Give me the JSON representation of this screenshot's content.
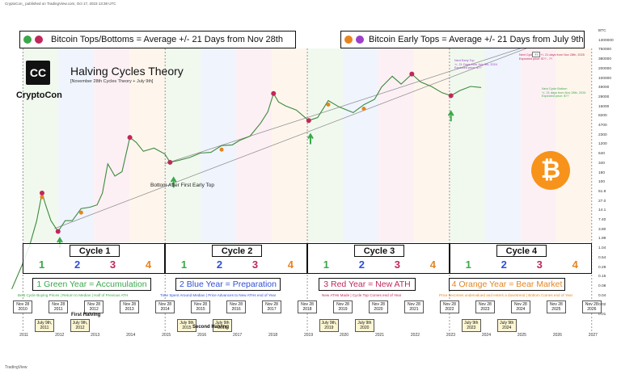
{
  "header": {
    "text": "CryptoCon_ published on TradingView.com, Oct 17, 2023 13:38 UTC"
  },
  "banners": {
    "left_text": "Bitcoin Tops/Bottoms = Average +/- 21 Days from Nov 28th",
    "right_text": "Bitcoin  Early Tops = Average +/- 21 Days from July 9th"
  },
  "brand": {
    "logo": "CC",
    "name": "CryptoCon"
  },
  "title": {
    "main": "Halving Cycles Theory",
    "sub": "[November 28th Cycles Theory + July 9th]"
  },
  "cycles": [
    {
      "label": "Cycle 1",
      "years": [
        "1",
        "2",
        "3",
        "4"
      ]
    },
    {
      "label": "Cycle 2",
      "years": [
        "1",
        "2",
        "3",
        "4"
      ]
    },
    {
      "label": "Cycle 3",
      "years": [
        "1",
        "2",
        "3",
        "4"
      ]
    },
    {
      "label": "Cycle 4",
      "years": [
        "1",
        "2",
        "3",
        "4"
      ]
    }
  ],
  "year_legend": [
    {
      "text": "1 Green Year = Accumulation",
      "note": "Best Cycle Buying Prices | Return to Median | Half of Previous ATH",
      "color": "#3aa84a"
    },
    {
      "text": "2 Blue Year = Preparation",
      "note": "Time Spent Around Median | Price Advances to New ATHs end of Year",
      "color": "#2f4fd8"
    },
    {
      "text": "3 Red Year = New ATH",
      "note": "New ATHs Made | Cycle Top Comes end of Year",
      "color": "#c0285a"
    },
    {
      "text": "4 Orange Year = Bear Market",
      "note": "Price becomes undervalued and enters a downtrend | Bottom Comes end of Year",
      "color": "#e6841f"
    }
  ],
  "nov_dates": [
    "Nov 28\n2010",
    "Nov 28\n2011",
    "Nov 28\n2012",
    "Nov 28\n2013",
    "Nov 28\n2014",
    "Nov 28\n2015",
    "Nov 28\n2016",
    "Nov 28\n2017",
    "Nov 28\n2018",
    "Nov 28\n2019",
    "Nov 28\n2020",
    "Nov 28\n2021",
    "Nov 28\n2022",
    "Nov 28\n2023",
    "Nov 28\n2024",
    "Nov 28\n2025",
    "Nov 28\n2026"
  ],
  "july_dates": [
    "July 9th,\n2011",
    "July 9th,\n2012",
    "July 9th\n2015",
    "July 9th\n2016",
    "July 9th,\n2019",
    "July 9th\n2020",
    "July 9th\n2023",
    "July 9th\n2024"
  ],
  "halvings": [
    "First Halving",
    "Second Halving"
  ],
  "annotations": {
    "bottom_after_first": "Bottom After First Early Top",
    "next_early_top": "Next Early Top\n+/- 21 Days from July 9th, 2024\nExpected price: $??",
    "next_cycle_top": "Next Cycle Top +/- 21 days from Nov 28th, 2025\nExpected price: $?? - ??",
    "next_cycle_bottom": "Next Cycle Bottom\n+/- 21 days from Nov 28th, 2026\nExpected price: $??",
    "price_box": "??"
  },
  "y_axis_labels": [
    "BTC",
    "1300000",
    "750000",
    "380000",
    "200000",
    "100000",
    "49000",
    "29000",
    "15000",
    "8200",
    "4700",
    "2300",
    "1200",
    "640",
    "340",
    "180",
    "100",
    "51.8",
    "27.0",
    "14.1",
    "7.40",
    "3.80",
    "1.99",
    "1.04",
    "0.54",
    "0.29",
    "0.15",
    "0.08",
    "0.04",
    "0.02",
    "0.01"
  ],
  "x_axis_labels": [
    "2011",
    "2012",
    "2013",
    "2014",
    "2015",
    "2016",
    "2017",
    "2018",
    "2019",
    "2020",
    "2021",
    "2022",
    "2023",
    "2024",
    "2025",
    "2026",
    "2027"
  ],
  "footer": {
    "text": "TradingView"
  },
  "colors": {
    "green": "#3aa84a",
    "blue": "#2f4fd8",
    "red": "#c0285a",
    "orange": "#e6841f",
    "purple": "#9c3fc9",
    "btc": "#f7931a"
  },
  "chart_data": {
    "type": "line",
    "title": "Halving Cycles Theory",
    "ylabel": "BTC",
    "yscale": "log",
    "ylim": [
      0.01,
      1300000
    ],
    "x": [
      2010.6,
      2010.9,
      2011.1,
      2011.3,
      2011.45,
      2011.55,
      2011.7,
      2011.9,
      2012.1,
      2012.3,
      2012.55,
      2012.8,
      2013.0,
      2013.15,
      2013.3,
      2013.5,
      2013.7,
      2013.92,
      2014.1,
      2014.3,
      2014.6,
      2014.9,
      2015.05,
      2015.3,
      2015.6,
      2015.9,
      2016.2,
      2016.5,
      2016.8,
      2017.0,
      2017.3,
      2017.6,
      2017.8,
      2017.96,
      2018.1,
      2018.3,
      2018.6,
      2018.95,
      2019.2,
      2019.5,
      2019.8,
      2020.2,
      2020.5,
      2020.8,
      2021.0,
      2021.3,
      2021.55,
      2021.85,
      2022.1,
      2022.4,
      2022.7,
      2022.95,
      2023.2,
      2023.5,
      2023.8
    ],
    "y": [
      0.06,
      0.3,
      1.0,
      5.0,
      30.0,
      14.0,
      5.0,
      2.5,
      5.0,
      5.0,
      11.0,
      12.0,
      14.0,
      30.0,
      200,
      90,
      120,
      1100,
      800,
      450,
      550,
      380,
      220,
      250,
      300,
      400,
      420,
      650,
      680,
      900,
      1200,
      2800,
      5800,
      19000,
      11000,
      8500,
      6500,
      3300,
      4000,
      12000,
      8000,
      5500,
      9200,
      13000,
      29000,
      58000,
      35000,
      67000,
      40000,
      30000,
      20000,
      16500,
      23000,
      30000,
      28000
    ],
    "series": [
      {
        "name": "Cycle Tops/Bottoms (Nov 28th)",
        "color": "#c0285a",
        "points": [
          [
            2011.45,
            30.0
          ],
          [
            2011.9,
            2.5
          ],
          [
            2013.92,
            1100
          ],
          [
            2015.05,
            220
          ],
          [
            2017.96,
            19000
          ],
          [
            2018.95,
            3300
          ],
          [
            2021.85,
            67000
          ],
          [
            2022.95,
            16500
          ]
        ]
      },
      {
        "name": "Early Tops (July 9th)",
        "color": "#e6841f",
        "points": [
          [
            2011.45,
            30.0
          ],
          [
            2012.55,
            11.0
          ],
          [
            2016.5,
            650
          ],
          [
            2019.5,
            12000
          ],
          [
            2020.5,
            9200
          ]
        ]
      }
    ]
  }
}
